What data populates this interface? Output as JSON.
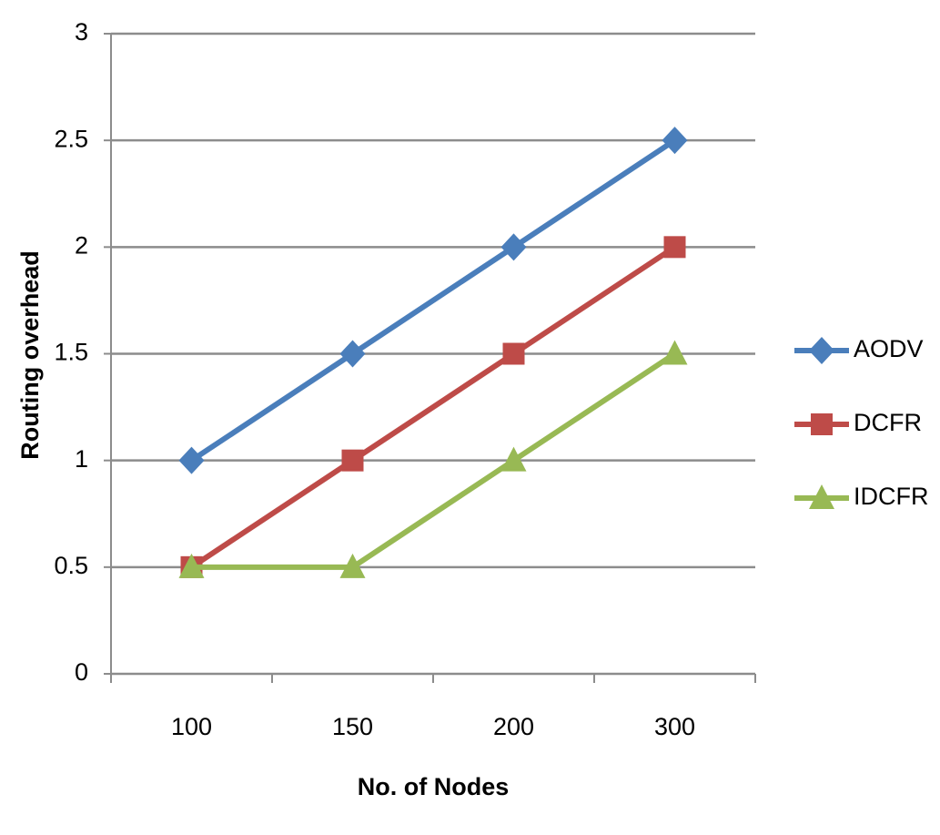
{
  "chart_data": {
    "type": "line",
    "x_label": "No. of Nodes",
    "y_label": "Routing overhead",
    "categories": [
      "100",
      "150",
      "200",
      "300"
    ],
    "series": [
      {
        "name": "AODV",
        "color": "#4a7ebb",
        "values": [
          1,
          1.5,
          2,
          2.5
        ]
      },
      {
        "name": "DCFR",
        "color": "#be4b48",
        "values": [
          0.5,
          1,
          1.5,
          2
        ]
      },
      {
        "name": "IDCFR",
        "color": "#98b954",
        "values": [
          0.5,
          0.5,
          1,
          1.5
        ]
      }
    ],
    "ylim": [
      0,
      3
    ],
    "yticks": [
      0,
      0.5,
      1,
      1.5,
      2,
      2.5,
      3
    ],
    "grid": true,
    "legend": "right"
  }
}
